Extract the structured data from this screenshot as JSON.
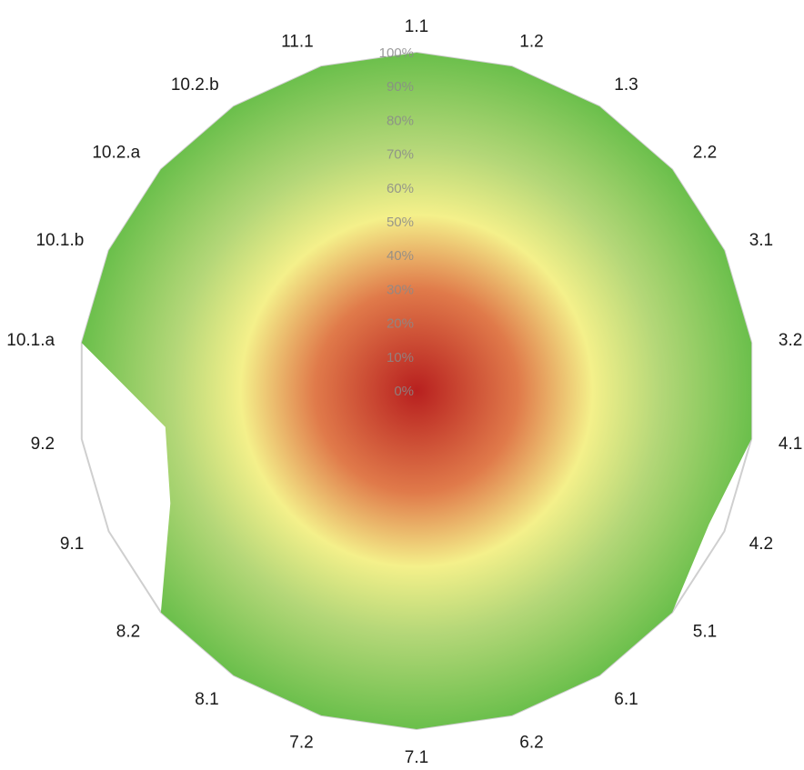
{
  "chart_data": {
    "type": "radar",
    "categories": [
      "1.1",
      "1.2",
      "1.3",
      "2.2",
      "3.1",
      "3.2",
      "4.1",
      "4.2",
      "5.1",
      "6.1",
      "6.2",
      "7.1",
      "7.2",
      "8.1",
      "8.2",
      "9.1",
      "9.2",
      "10.1.a",
      "10.1.b",
      "10.2.a",
      "10.2.b",
      "11.1"
    ],
    "series": [
      {
        "values": [
          100,
          100,
          100,
          100,
          100,
          100,
          100,
          95,
          100,
          100,
          100,
          100,
          100,
          100,
          100,
          80,
          75,
          100,
          100,
          100,
          100,
          100
        ]
      }
    ],
    "radial_ticks": [
      "0%",
      "10%",
      "20%",
      "30%",
      "40%",
      "50%",
      "60%",
      "70%",
      "80%",
      "90%",
      "100%"
    ],
    "rlim": [
      0,
      100
    ],
    "grid": false,
    "legend": "none",
    "fill_gradient": [
      "#b8201f",
      "#e07a4a",
      "#f4f08a",
      "#b4d778",
      "#6abf4b"
    ],
    "outline_color": "#cfcfcf"
  }
}
